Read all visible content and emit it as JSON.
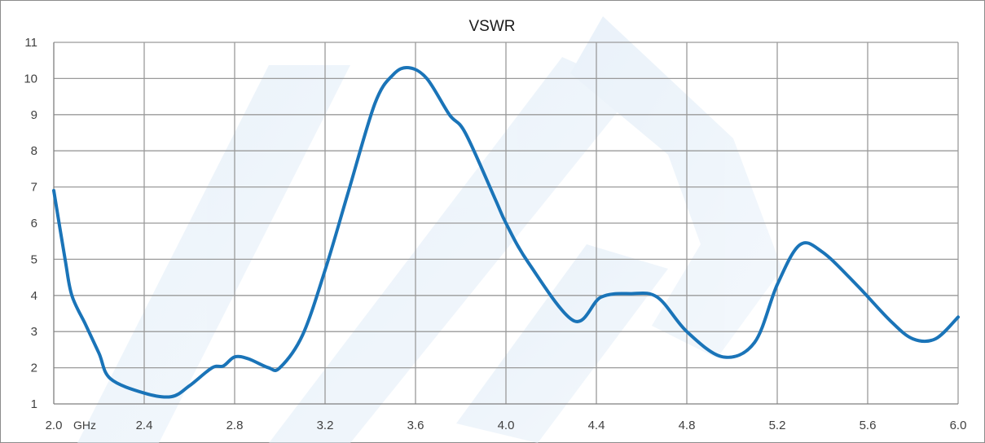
{
  "chart_data": {
    "type": "line",
    "title": "VSWR",
    "xlabel": "",
    "x_unit": "GHz",
    "ylabel": "",
    "xlim": [
      2.0,
      6.0
    ],
    "ylim": [
      1,
      11
    ],
    "x_ticks": [
      "2.0",
      "2.4",
      "2.8",
      "3.2",
      "3.6",
      "4.0",
      "4.4",
      "4.8",
      "5.2",
      "5.6",
      "6.0"
    ],
    "y_ticks": [
      "1",
      "2",
      "3",
      "4",
      "5",
      "6",
      "7",
      "8",
      "9",
      "10",
      "11"
    ],
    "grid": true,
    "legend": "none",
    "series": [
      {
        "color": "#1a74b8",
        "x": [
          2.0,
          2.05,
          2.08,
          2.14,
          2.2,
          2.25,
          2.4,
          2.52,
          2.6,
          2.7,
          2.75,
          2.8,
          2.86,
          2.95,
          3.0,
          3.1,
          3.2,
          3.3,
          3.42,
          3.5,
          3.57,
          3.65,
          3.75,
          3.82,
          3.95,
          4.0,
          4.1,
          4.3,
          4.42,
          4.55,
          4.67,
          4.8,
          4.96,
          5.1,
          5.2,
          5.3,
          5.4,
          5.55,
          5.7,
          5.8,
          5.9,
          6.0
        ],
        "y": [
          6.9,
          5.0,
          4.0,
          3.2,
          2.4,
          1.7,
          1.3,
          1.2,
          1.5,
          2.0,
          2.05,
          2.3,
          2.25,
          2.0,
          2.0,
          2.9,
          4.7,
          6.8,
          9.3,
          10.1,
          10.3,
          10.0,
          9.0,
          8.5,
          6.7,
          6.0,
          4.9,
          3.3,
          3.95,
          4.05,
          3.95,
          3.0,
          2.3,
          2.7,
          4.3,
          5.4,
          5.2,
          4.3,
          3.3,
          2.8,
          2.8,
          3.4
        ]
      }
    ]
  }
}
